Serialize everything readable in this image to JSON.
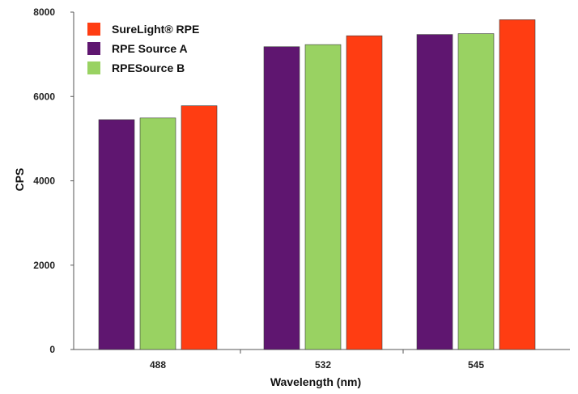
{
  "chart_data": {
    "type": "bar",
    "title": "",
    "xlabel": "Wavelength (nm)",
    "ylabel": "CPS",
    "categories": [
      "488",
      "532",
      "545"
    ],
    "ylim": [
      0,
      8000
    ],
    "yticks": [
      "0",
      "2000",
      "4000",
      "6000",
      "8000"
    ],
    "grid": false,
    "legend_position": "top-left",
    "legend_order": [
      "SureLight® RPE",
      "RPE Source A",
      "RPESource B"
    ],
    "bar_order": [
      "RPE Source A",
      "RPESource B",
      "SureLight® RPE"
    ],
    "series": [
      {
        "name": "SureLight® RPE",
        "color": "#ff3d12",
        "values": [
          5780,
          7440,
          7820
        ]
      },
      {
        "name": "RPE Source A",
        "color": "#5f1670",
        "values": [
          5450,
          7180,
          7470
        ]
      },
      {
        "name": "RPESource B",
        "color": "#99d262",
        "values": [
          5490,
          7230,
          7490
        ]
      }
    ]
  }
}
